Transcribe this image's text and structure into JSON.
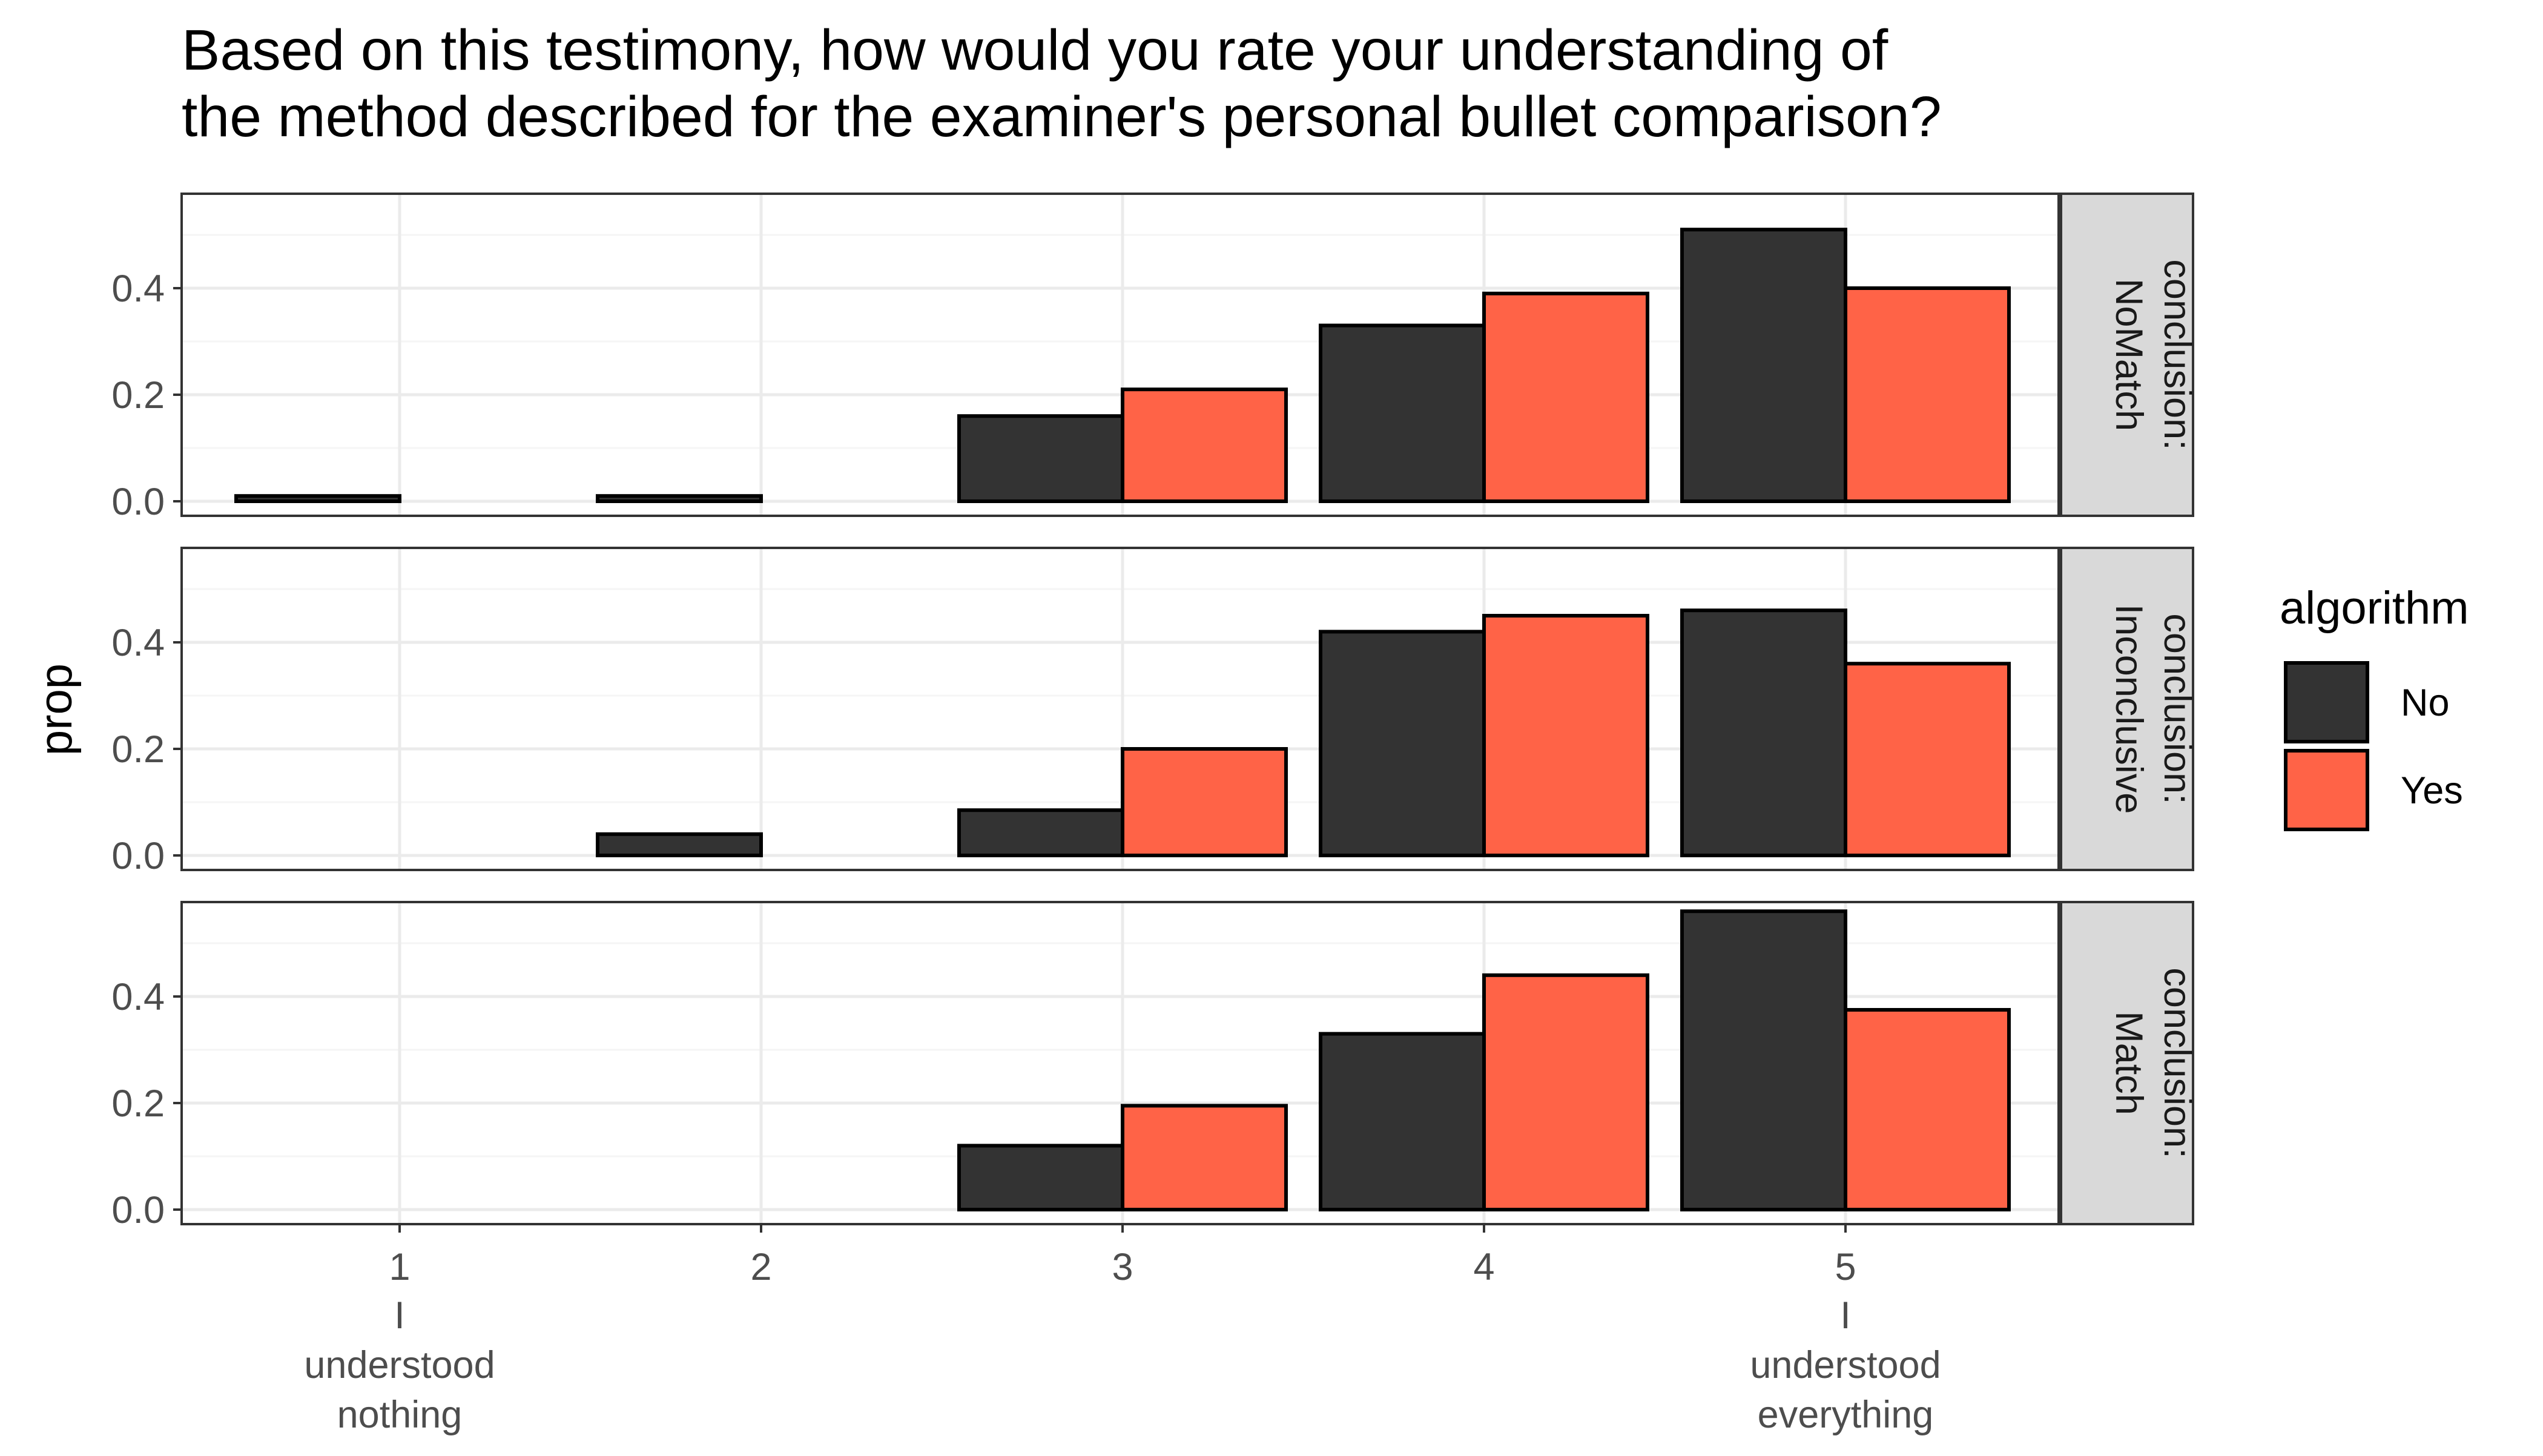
{
  "chart_data": {
    "type": "bar",
    "title_lines": [
      "Based on this testimony, how would you rate your understanding of",
      " the method described for the examiner's personal bullet comparison?"
    ],
    "ylabel": "prop",
    "xlabel": "",
    "categories": [
      "1",
      "2",
      "3",
      "4",
      "5"
    ],
    "category_sublabels": [
      [
        "I",
        "understood",
        "nothing"
      ],
      [],
      [],
      [],
      [
        "I",
        "understood",
        "everything"
      ]
    ],
    "ylim": [
      0,
      0.56
    ],
    "yticks": [
      "0.0",
      "0.2",
      "0.4"
    ],
    "grid": true,
    "legend": {
      "title": "algorithm",
      "position": "right",
      "entries": [
        {
          "label": "No",
          "color": "#333333"
        },
        {
          "label": "Yes",
          "color": "#FF6347"
        }
      ]
    },
    "facets": [
      {
        "strip_lines": [
          "conclusion:",
          "NoMatch"
        ],
        "series": [
          {
            "name": "No",
            "values": [
              0.01,
              0.01,
              0.16,
              0.33,
              0.51
            ]
          },
          {
            "name": "Yes",
            "values": [
              0,
              0,
              0.21,
              0.39,
              0.4
            ]
          }
        ]
      },
      {
        "strip_lines": [
          "conclusion:",
          "Inconclusive"
        ],
        "series": [
          {
            "name": "No",
            "values": [
              0,
              0.04,
              0.085,
              0.42,
              0.46
            ]
          },
          {
            "name": "Yes",
            "values": [
              0,
              0,
              0.2,
              0.45,
              0.36
            ]
          }
        ]
      },
      {
        "strip_lines": [
          "conclusion:",
          "Match"
        ],
        "series": [
          {
            "name": "No",
            "values": [
              0,
              0,
              0.12,
              0.33,
              0.56
            ]
          },
          {
            "name": "Yes",
            "values": [
              0,
              0,
              0.195,
              0.44,
              0.375
            ]
          }
        ]
      }
    ]
  },
  "colors": {
    "panel_border": "#333333",
    "grid_major": "#ebebeb",
    "grid_minor": "#f5f5f5",
    "strip_fill": "#d9d9d9",
    "bar_outline": "#000000"
  }
}
